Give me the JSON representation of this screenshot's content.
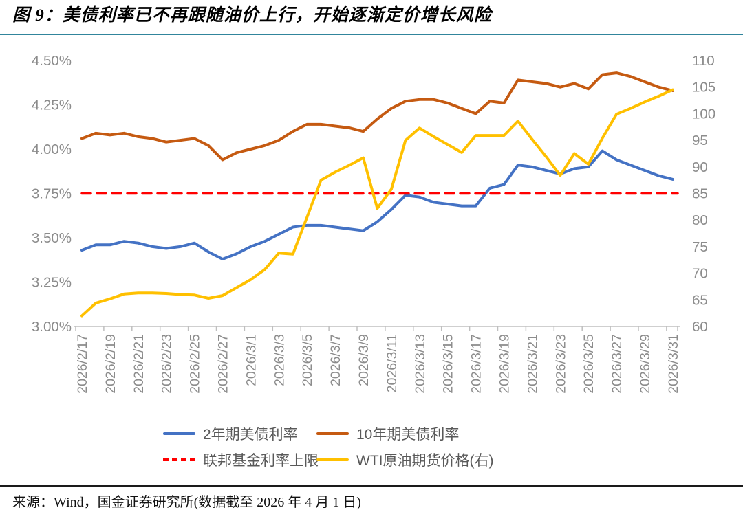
{
  "header": {
    "title": "图 9：美债利率已不再跟随油价上行，开始逐渐定价增长风险"
  },
  "footer": {
    "source": "来源：Wind，国金证券研究所(数据截至 2026 年 4 月 1 日)"
  },
  "colors": {
    "title_rule": "#31859C",
    "axis_line": "#BFBFBF",
    "axis_text": "#8C8C8C",
    "legend_text": "#595959",
    "series_2y": "#4472C4",
    "series_10y": "#C55A11",
    "series_fed": "#FF0000",
    "series_wti": "#FFC000"
  },
  "chart_data": {
    "type": "line",
    "grid": false,
    "legend_position": "bottom",
    "x": [
      "2026/2/17",
      "2026/2/18",
      "2026/2/19",
      "2026/2/20",
      "2026/2/21",
      "2026/2/22",
      "2026/2/23",
      "2026/2/24",
      "2026/2/25",
      "2026/2/26",
      "2026/2/27",
      "2026/2/28",
      "2026/3/1",
      "2026/3/2",
      "2026/3/3",
      "2026/3/4",
      "2026/3/5",
      "2026/3/6",
      "2026/3/7",
      "2026/3/8",
      "2026/3/9",
      "2026/3/10",
      "2026/3/11",
      "2026/3/12",
      "2026/3/13",
      "2026/3/14",
      "2026/3/15",
      "2026/3/16",
      "2026/3/17",
      "2026/3/18",
      "2026/3/19",
      "2026/3/20",
      "2026/3/21",
      "2026/3/22",
      "2026/3/23",
      "2026/3/24",
      "2026/3/25",
      "2026/3/26",
      "2026/3/27",
      "2026/3/28",
      "2026/3/29",
      "2026/3/30",
      "2026/3/31"
    ],
    "x_tick_labels": [
      "2026/2/17",
      "2026/2/19",
      "2026/2/21",
      "2026/2/23",
      "2026/2/25",
      "2026/2/27",
      "2026/3/1",
      "2026/3/3",
      "2026/3/5",
      "2026/3/7",
      "2026/3/9",
      "2026/3/11",
      "2026/3/13",
      "2026/3/15",
      "2026/3/17",
      "2026/3/19",
      "2026/3/21",
      "2026/3/23",
      "2026/3/25",
      "2026/3/27",
      "2026/3/29",
      "2026/3/31"
    ],
    "left_axis": {
      "min": 3.0,
      "max": 4.5,
      "step": 0.25,
      "tick_labels": [
        "4.50%",
        "4.25%",
        "4.00%",
        "3.75%",
        "3.50%",
        "3.25%",
        "3.00%"
      ]
    },
    "right_axis": {
      "min": 60,
      "max": 110,
      "step": 5,
      "tick_labels": [
        "110",
        "105",
        "100",
        "95",
        "90",
        "85",
        "80",
        "75",
        "70",
        "65",
        "60"
      ]
    },
    "series": [
      {
        "id": "us2y",
        "name": "2年期美债利率",
        "axis": "left",
        "style": "solid",
        "color": "#4472C4",
        "values": [
          3.43,
          3.46,
          3.46,
          3.48,
          3.47,
          3.45,
          3.44,
          3.45,
          3.47,
          3.42,
          3.38,
          3.41,
          3.45,
          3.48,
          3.52,
          3.56,
          3.57,
          3.57,
          3.56,
          3.55,
          3.54,
          3.59,
          3.66,
          3.74,
          3.73,
          3.7,
          3.69,
          3.68,
          3.68,
          3.78,
          3.8,
          3.91,
          3.9,
          3.88,
          3.86,
          3.89,
          3.9,
          3.99,
          3.94,
          3.91,
          3.88,
          3.85,
          3.83
        ]
      },
      {
        "id": "us10y",
        "name": "10年期美债利率",
        "axis": "left",
        "style": "solid",
        "color": "#C55A11",
        "values": [
          4.06,
          4.09,
          4.08,
          4.09,
          4.07,
          4.06,
          4.04,
          4.05,
          4.06,
          4.02,
          3.94,
          3.98,
          4.0,
          4.02,
          4.05,
          4.1,
          4.14,
          4.14,
          4.13,
          4.12,
          4.1,
          4.17,
          4.23,
          4.27,
          4.28,
          4.28,
          4.26,
          4.23,
          4.2,
          4.27,
          4.26,
          4.39,
          4.38,
          4.37,
          4.35,
          4.37,
          4.34,
          4.42,
          4.43,
          4.41,
          4.38,
          4.35,
          4.33
        ]
      },
      {
        "id": "fed_ceiling",
        "name": "联邦基金利率上限",
        "axis": "left",
        "style": "dashed",
        "color": "#FF0000",
        "constant": 3.75
      },
      {
        "id": "wti",
        "name": "WTI原油期货价格(右)",
        "axis": "right",
        "style": "solid",
        "color": "#FFC000",
        "values": [
          62.0,
          64.4,
          65.2,
          66.1,
          66.3,
          66.3,
          66.2,
          66.0,
          65.9,
          65.3,
          65.8,
          67.3,
          68.8,
          70.7,
          73.8,
          73.6,
          80.5,
          87.5,
          89.0,
          90.3,
          91.7,
          82.2,
          85.8,
          95.0,
          97.3,
          95.7,
          94.2,
          92.7,
          95.9,
          95.9,
          95.9,
          98.6,
          95.2,
          91.9,
          88.4,
          92.5,
          90.5,
          95.4,
          99.9,
          101.0,
          102.2,
          103.3,
          104.5
        ]
      }
    ]
  }
}
